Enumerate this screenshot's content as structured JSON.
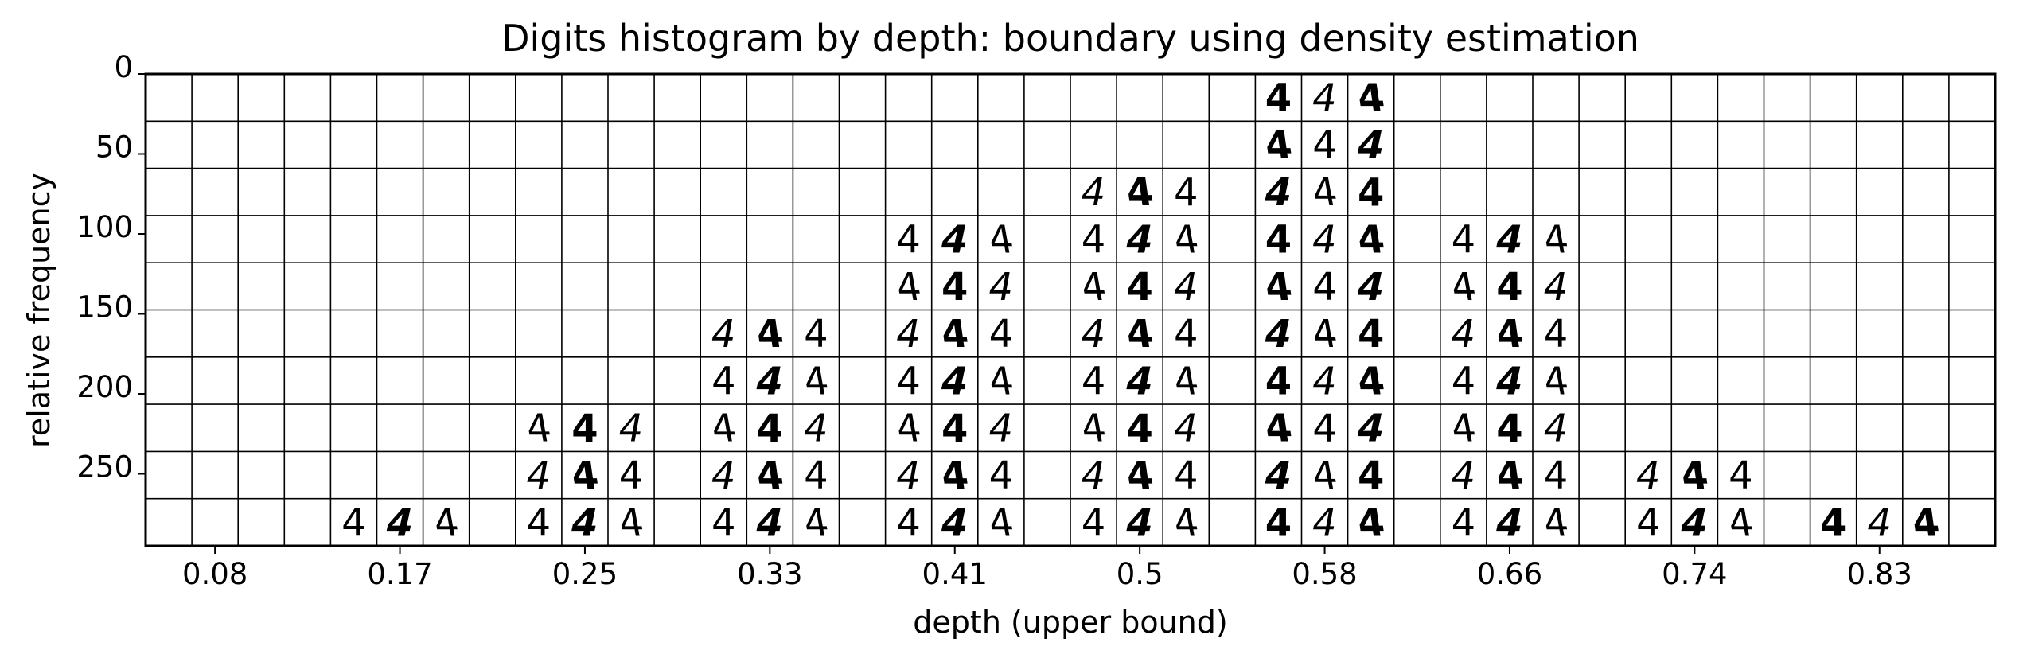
{
  "chart_data": {
    "type": "histogram",
    "title": "Digits histogram by depth: boundary using density estimation",
    "xlabel": "depth (upper bound)",
    "ylabel": "relative frequency",
    "x_tick_labels": [
      "0.08",
      "0.17",
      "0.25",
      "0.33",
      "0.41",
      "0.5",
      "0.58",
      "0.66",
      "0.74",
      "0.83"
    ],
    "y_tick_labels": [
      "0",
      "50",
      "100",
      "150",
      "200",
      "250"
    ],
    "y_inverted": true,
    "grid": true,
    "digit_shown": "4",
    "images_per_bin_row": 3,
    "categories": [
      "0.08",
      "0.17",
      "0.25",
      "0.33",
      "0.41",
      "0.5",
      "0.58",
      "0.66",
      "0.74",
      "0.83"
    ],
    "values": [
      0,
      1,
      3,
      5,
      7,
      8,
      10,
      7,
      2,
      1
    ],
    "value_unit": "rows of digit images (stacked from bottom)",
    "series": [
      {
        "name": "",
        "values": [
          0,
          1,
          3,
          5,
          7,
          8,
          10,
          7,
          2,
          1
        ]
      }
    ]
  }
}
